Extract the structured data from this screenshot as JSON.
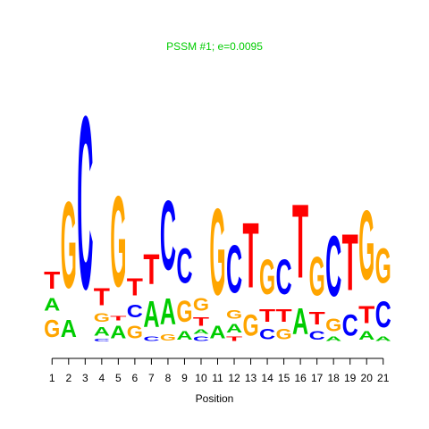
{
  "chart_data": {
    "type": "sequence-logo",
    "title": "PSSM #1; e=0.0095",
    "xlabel": "Position",
    "ylabel": "",
    "alphabet": [
      "A",
      "C",
      "G",
      "T"
    ],
    "colors": {
      "A": "#00cc00",
      "C": "#0000ff",
      "G": "#ffa500",
      "T": "#ff0000",
      "title": "#00cc00"
    },
    "x_ticks": [
      "1",
      "2",
      "3",
      "4",
      "5",
      "6",
      "7",
      "8",
      "9",
      "10",
      "11",
      "12",
      "13",
      "14",
      "15",
      "16",
      "17",
      "18",
      "19",
      "20",
      "21"
    ],
    "ylim": [
      0,
      2.1
    ],
    "grid": false,
    "legend": "none",
    "positions": [
      {
        "pos": 1,
        "letters": [
          {
            "base": "G",
            "height": 0.2
          },
          {
            "base": "A",
            "height": 0.15
          },
          {
            "base": "T",
            "height": 0.2
          }
        ]
      },
      {
        "pos": 2,
        "letters": [
          {
            "base": "A",
            "height": 0.2
          },
          {
            "base": "G",
            "height": 1.0
          }
        ]
      },
      {
        "pos": 3,
        "letters": [
          {
            "base": "C",
            "height": 2.0
          }
        ]
      },
      {
        "pos": 4,
        "letters": [
          {
            "base": "C",
            "height": 0.03
          },
          {
            "base": "A",
            "height": 0.1
          },
          {
            "base": "G",
            "height": 0.1
          },
          {
            "base": "T",
            "height": 0.2
          }
        ]
      },
      {
        "pos": 5,
        "letters": [
          {
            "base": "A",
            "height": 0.15
          },
          {
            "base": "T",
            "height": 0.05
          },
          {
            "base": "G",
            "height": 1.05
          }
        ]
      },
      {
        "pos": 6,
        "letters": [
          {
            "base": "G",
            "height": 0.15
          },
          {
            "base": "C",
            "height": 0.15
          },
          {
            "base": "T",
            "height": 0.2
          }
        ]
      },
      {
        "pos": 7,
        "letters": [
          {
            "base": "C",
            "height": 0.05
          },
          {
            "base": "A",
            "height": 0.3
          },
          {
            "base": "T",
            "height": 0.35
          }
        ]
      },
      {
        "pos": 8,
        "letters": [
          {
            "base": "G",
            "height": 0.07
          },
          {
            "base": "A",
            "height": 0.3
          },
          {
            "base": "C",
            "height": 0.8
          }
        ]
      },
      {
        "pos": 9,
        "letters": [
          {
            "base": "A",
            "height": 0.1
          },
          {
            "base": "G",
            "height": 0.25
          },
          {
            "base": "C",
            "height": 0.4
          }
        ]
      },
      {
        "pos": 10,
        "letters": [
          {
            "base": "C",
            "height": 0.05
          },
          {
            "base": "A",
            "height": 0.05
          },
          {
            "base": "T",
            "height": 0.1
          },
          {
            "base": "G",
            "height": 0.15
          }
        ]
      },
      {
        "pos": 11,
        "letters": [
          {
            "base": "A",
            "height": 0.15
          },
          {
            "base": "G",
            "height": 1.0
          }
        ]
      },
      {
        "pos": 12,
        "letters": [
          {
            "base": "T",
            "height": 0.05
          },
          {
            "base": "A",
            "height": 0.1
          },
          {
            "base": "G",
            "height": 0.1
          },
          {
            "base": "C",
            "height": 0.55
          }
        ]
      },
      {
        "pos": 13,
        "letters": [
          {
            "base": "G",
            "height": 0.25
          },
          {
            "base": "T",
            "height": 0.75
          }
        ]
      },
      {
        "pos": 14,
        "letters": [
          {
            "base": "C",
            "height": 0.12
          },
          {
            "base": "T",
            "height": 0.15
          },
          {
            "base": "G",
            "height": 0.4
          }
        ]
      },
      {
        "pos": 15,
        "letters": [
          {
            "base": "G",
            "height": 0.12
          },
          {
            "base": "T",
            "height": 0.15
          },
          {
            "base": "C",
            "height": 0.4
          }
        ]
      },
      {
        "pos": 16,
        "letters": [
          {
            "base": "A",
            "height": 0.3
          },
          {
            "base": "T",
            "height": 0.85
          }
        ]
      },
      {
        "pos": 17,
        "letters": [
          {
            "base": "C",
            "height": 0.1
          },
          {
            "base": "T",
            "height": 0.15
          },
          {
            "base": "G",
            "height": 0.45
          }
        ]
      },
      {
        "pos": 18,
        "letters": [
          {
            "base": "A",
            "height": 0.05
          },
          {
            "base": "G",
            "height": 0.15
          },
          {
            "base": "C",
            "height": 0.7
          }
        ]
      },
      {
        "pos": 19,
        "letters": [
          {
            "base": "C",
            "height": 0.25
          },
          {
            "base": "T",
            "height": 0.65
          }
        ]
      },
      {
        "pos": 20,
        "letters": [
          {
            "base": "A",
            "height": 0.1
          },
          {
            "base": "T",
            "height": 0.2
          },
          {
            "base": "G",
            "height": 0.8
          }
        ]
      },
      {
        "pos": 21,
        "letters": [
          {
            "base": "A",
            "height": 0.05
          },
          {
            "base": "C",
            "height": 0.3
          },
          {
            "base": "G",
            "height": 0.4
          }
        ]
      }
    ]
  }
}
